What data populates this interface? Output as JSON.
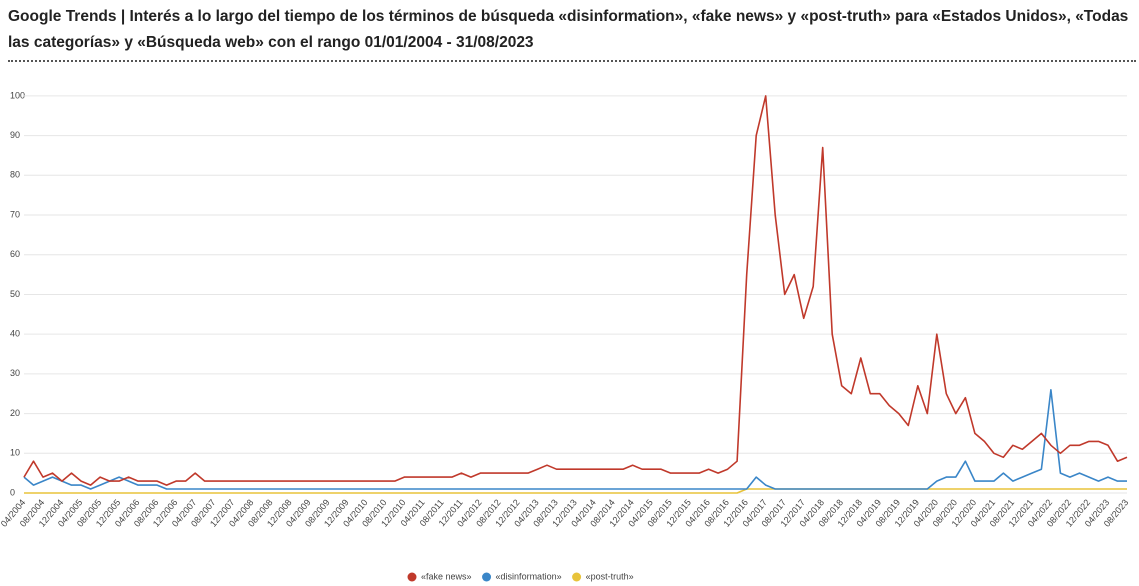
{
  "chart_data": {
    "type": "line",
    "title": "Google Trends | Interés a lo largo del tiempo de los términos de búsqueda «disinformation», «fake news» y «post-truth» para «Estados Unidos», «Todas las categorías» y «Búsqueda web» con el rango 01/01/2004 - 31/08/2023",
    "categories": [
      "04/2004",
      null,
      "08/2004",
      null,
      "12/2004",
      null,
      "04/2005",
      null,
      "08/2005",
      null,
      "12/2005",
      null,
      "04/2006",
      null,
      "08/2006",
      null,
      "12/2006",
      null,
      "04/2007",
      null,
      "08/2007",
      null,
      "12/2007",
      null,
      "04/2008",
      null,
      "08/2008",
      null,
      "12/2008",
      null,
      "04/2009",
      null,
      "08/2009",
      null,
      "12/2009",
      null,
      "04/2010",
      null,
      "08/2010",
      null,
      "12/2010",
      null,
      "04/2011",
      null,
      "08/2011",
      null,
      "12/2011",
      null,
      "04/2012",
      null,
      "08/2012",
      null,
      "12/2012",
      null,
      "04/2013",
      null,
      "08/2013",
      null,
      "12/2013",
      null,
      "04/2014",
      null,
      "08/2014",
      null,
      "12/2014",
      null,
      "04/2015",
      null,
      "08/2015",
      null,
      "12/2015",
      null,
      "04/2016",
      null,
      "08/2016",
      null,
      "12/2016",
      null,
      "04/2017",
      null,
      "08/2017",
      null,
      "12/2017",
      null,
      "04/2018",
      null,
      "08/2018",
      null,
      "12/2018",
      null,
      "04/2019",
      null,
      "08/2019",
      null,
      "12/2019",
      null,
      "04/2020",
      null,
      "08/2020",
      null,
      "12/2020",
      null,
      "04/2021",
      null,
      "08/2021",
      null,
      "12/2021",
      null,
      "04/2022",
      null,
      "08/2022",
      null,
      "12/2022",
      null,
      "04/2023",
      null,
      "08/2023"
    ],
    "series": [
      {
        "name": "«fake news»",
        "color": "#c0392b",
        "values": [
          4,
          8,
          4,
          5,
          3,
          5,
          3,
          2,
          4,
          3,
          3,
          4,
          3,
          3,
          3,
          2,
          3,
          3,
          5,
          3,
          3,
          3,
          3,
          3,
          3,
          3,
          3,
          3,
          3,
          3,
          3,
          3,
          3,
          3,
          3,
          3,
          3,
          3,
          3,
          3,
          4,
          4,
          4,
          4,
          4,
          4,
          5,
          4,
          5,
          5,
          5,
          5,
          5,
          5,
          6,
          7,
          6,
          6,
          6,
          6,
          6,
          6,
          6,
          6,
          7,
          6,
          6,
          6,
          5,
          5,
          5,
          5,
          6,
          5,
          6,
          8,
          55,
          90,
          100,
          70,
          50,
          55,
          44,
          52,
          87,
          40,
          27,
          25,
          34,
          25,
          25,
          22,
          20,
          17,
          27,
          20,
          40,
          25,
          20,
          24,
          15,
          13,
          10,
          9,
          12,
          11,
          13,
          15,
          12,
          10,
          12,
          12,
          13,
          13,
          12,
          8,
          9
        ]
      },
      {
        "name": "«disinformation»",
        "color": "#3a86c8",
        "values": [
          4,
          2,
          3,
          4,
          3,
          2,
          2,
          1,
          2,
          3,
          4,
          3,
          2,
          2,
          2,
          1,
          1,
          1,
          1,
          1,
          1,
          1,
          1,
          1,
          1,
          1,
          1,
          1,
          1,
          1,
          1,
          1,
          1,
          1,
          1,
          1,
          1,
          1,
          1,
          1,
          1,
          1,
          1,
          1,
          1,
          1,
          1,
          1,
          1,
          1,
          1,
          1,
          1,
          1,
          1,
          1,
          1,
          1,
          1,
          1,
          1,
          1,
          1,
          1,
          1,
          1,
          1,
          1,
          1,
          1,
          1,
          1,
          1,
          1,
          1,
          1,
          1,
          4,
          2,
          1,
          1,
          1,
          1,
          1,
          1,
          1,
          1,
          1,
          1,
          1,
          1,
          1,
          1,
          1,
          1,
          1,
          3,
          4,
          4,
          8,
          3,
          3,
          3,
          5,
          3,
          4,
          5,
          6,
          26,
          5,
          4,
          5,
          4,
          3,
          4,
          3,
          3
        ]
      },
      {
        "name": "«post-truth»",
        "color": "#e8c33a",
        "values": [
          0,
          0,
          0,
          0,
          0,
          0,
          0,
          0,
          0,
          0,
          0,
          0,
          0,
          0,
          0,
          0,
          0,
          0,
          0,
          0,
          0,
          0,
          0,
          0,
          0,
          0,
          0,
          0,
          0,
          0,
          0,
          0,
          0,
          0,
          0,
          0,
          0,
          0,
          0,
          0,
          0,
          0,
          0,
          0,
          0,
          0,
          0,
          0,
          0,
          0,
          0,
          0,
          0,
          0,
          0,
          0,
          0,
          0,
          0,
          0,
          0,
          0,
          0,
          0,
          0,
          0,
          0,
          0,
          0,
          0,
          0,
          0,
          0,
          0,
          0,
          0,
          1,
          1,
          1,
          1,
          1,
          1,
          1,
          1,
          1,
          1,
          1,
          1,
          1,
          1,
          1,
          1,
          1,
          1,
          1,
          1,
          1,
          1,
          1,
          1,
          1,
          1,
          1,
          1,
          1,
          1,
          1,
          1,
          1,
          1,
          1,
          1,
          1,
          1,
          1,
          1,
          1
        ]
      }
    ],
    "ylim": [
      0,
      104
    ],
    "yticks": [
      0,
      10,
      20,
      30,
      40,
      50,
      60,
      70,
      80,
      90,
      100
    ],
    "grid": true,
    "legend": "bottom"
  }
}
